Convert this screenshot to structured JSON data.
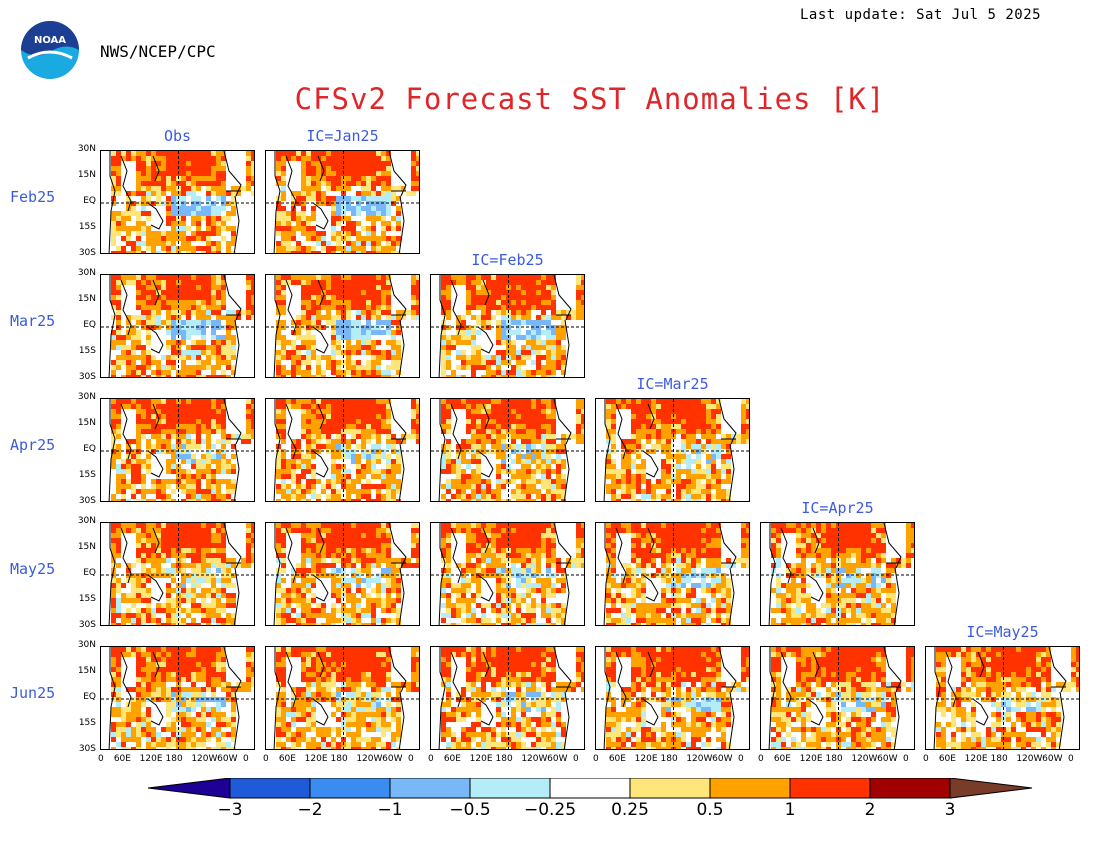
{
  "header": {
    "last_update": "Last update: Sat Jul 5 2025",
    "agency": "NWS/NCEP/CPC",
    "logo_text": "NOAA",
    "title": "CFSv2 Forecast SST Anomalies [K]"
  },
  "columns": [
    "Obs",
    "IC=Jan25",
    "IC=Feb25",
    "IC=Mar25",
    "IC=Apr25",
    "IC=May25"
  ],
  "rows": [
    "Feb25",
    "Mar25",
    "Apr25",
    "May25",
    "Jun25"
  ],
  "lat_labels": [
    "30N",
    "15N",
    "EQ",
    "15S",
    "30S"
  ],
  "lon_labels": [
    "0",
    "60E",
    "120E",
    "180",
    "120W",
    "60W",
    "0"
  ],
  "colorbar": {
    "colors": [
      "#1e0096",
      "#1f5bd8",
      "#3a8cf0",
      "#78b8f8",
      "#b4ecf8",
      "#ffffff",
      "#ffe67a",
      "#ffa200",
      "#ff3200",
      "#a00000",
      "#783c28"
    ],
    "ticks": [
      "−3",
      "−2",
      "−1",
      "−0.5",
      "−0.25",
      "0.25",
      "0.5",
      "1",
      "2",
      "3"
    ]
  }
}
